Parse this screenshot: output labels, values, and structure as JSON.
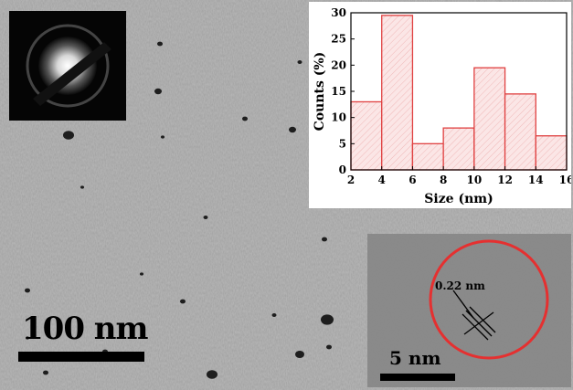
{
  "panel": {
    "scale_bar_main": "100 nm",
    "scale_bar_inset": "5 nm",
    "lattice_spacing": "0.22 nm"
  },
  "chart_data": {
    "type": "bar",
    "categories": [
      "2-4",
      "4-6",
      "6-8",
      "8-10",
      "10-12",
      "12-14",
      "14-16"
    ],
    "bin_edges": [
      2,
      4,
      6,
      8,
      10,
      12,
      14,
      16
    ],
    "values": [
      13,
      29.5,
      5,
      8,
      19.5,
      14.5,
      6.5
    ],
    "xlabel": "Size (nm)",
    "ylabel": "Counts (%)",
    "xlim": [
      2,
      16
    ],
    "ylim": [
      0,
      30
    ],
    "xticks": [
      2,
      4,
      6,
      8,
      10,
      12,
      14,
      16
    ],
    "yticks": [
      0,
      5,
      10,
      15,
      20,
      25,
      30
    ],
    "grid": false,
    "bar_color": "#e04040",
    "bar_fill": "#f6d7d7"
  },
  "colors": {
    "highlight_circle": "#e53030",
    "tem_background": "#a9a9a9"
  }
}
